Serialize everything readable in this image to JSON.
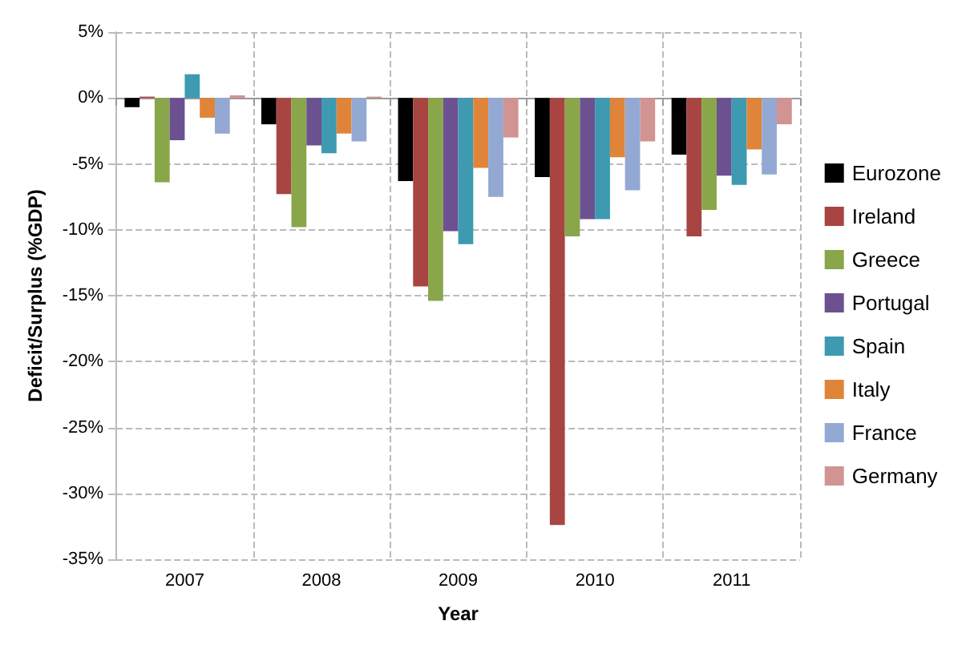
{
  "chart_data": {
    "type": "bar",
    "xlabel": "Year",
    "ylabel": "Deficit/Surplus (%GDP)",
    "categories": [
      "2007",
      "2008",
      "2009",
      "2010",
      "2011"
    ],
    "series": [
      {
        "name": "Eurozone",
        "color": "#000000",
        "values": [
          -0.7,
          -2.0,
          -6.3,
          -6.0,
          -4.3
        ]
      },
      {
        "name": "Ireland",
        "color": "#a84442",
        "values": [
          0.1,
          -7.3,
          -14.3,
          -32.4,
          -10.5
        ]
      },
      {
        "name": "Greece",
        "color": "#8aa64a",
        "values": [
          -6.4,
          -9.8,
          -15.4,
          -10.5,
          -8.5
        ]
      },
      {
        "name": "Portugal",
        "color": "#6c5191",
        "values": [
          -3.2,
          -3.6,
          -10.1,
          -9.2,
          -5.9
        ]
      },
      {
        "name": "Spain",
        "color": "#3d9ab0",
        "values": [
          1.8,
          -4.2,
          -11.1,
          -9.2,
          -6.6
        ]
      },
      {
        "name": "Italy",
        "color": "#e0843a",
        "values": [
          -1.5,
          -2.7,
          -5.3,
          -4.5,
          -3.9
        ]
      },
      {
        "name": "France",
        "color": "#93a9d4",
        "values": [
          -2.7,
          -3.3,
          -7.5,
          -7.0,
          -5.8
        ]
      },
      {
        "name": "Germany",
        "color": "#d29393",
        "values": [
          0.2,
          0.1,
          -3.0,
          -3.3,
          -2.0
        ]
      }
    ],
    "ylim": [
      -35,
      5
    ],
    "yticks": [
      {
        "value": 5,
        "label": "5%"
      },
      {
        "value": 0,
        "label": "0%"
      },
      {
        "value": -5,
        "label": "-5%"
      },
      {
        "value": -10,
        "label": "-10%"
      },
      {
        "value": -15,
        "label": "-15%"
      },
      {
        "value": -20,
        "label": "-20%"
      },
      {
        "value": -25,
        "label": "-25%"
      },
      {
        "value": -30,
        "label": "-30%"
      },
      {
        "value": -35,
        "label": "-35%"
      }
    ],
    "grid": true,
    "legend": "right"
  }
}
